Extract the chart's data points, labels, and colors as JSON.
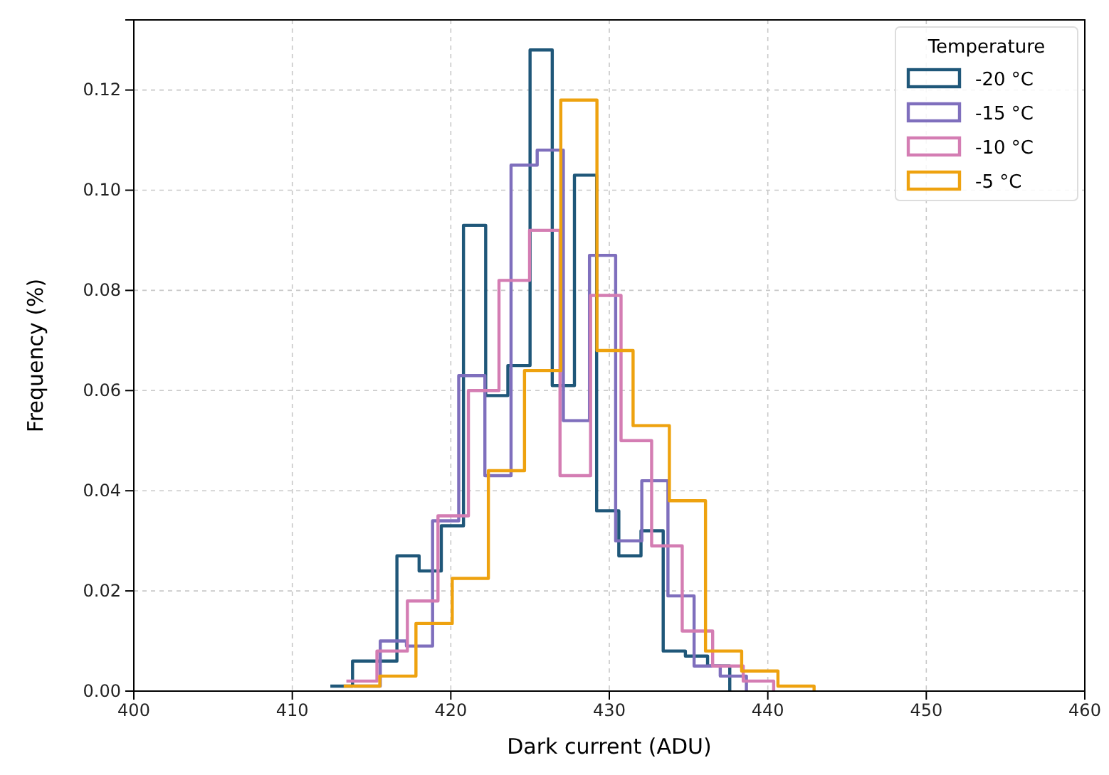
{
  "chart_data": {
    "type": "step",
    "xlabel": "Dark current (ADU)",
    "ylabel": "Frequency (%)",
    "legend_title": "Temperature",
    "legend": "top right",
    "grid": true,
    "xlim": [
      400,
      460
    ],
    "xticks": [
      400,
      410,
      420,
      430,
      440,
      450,
      460
    ],
    "ylim": [
      0,
      0.134
    ],
    "yticks": [
      {
        "value": 0,
        "label": "0.00"
      },
      {
        "value": 0.02,
        "label": "0.02"
      },
      {
        "value": 0.04,
        "label": "0.04"
      },
      {
        "value": 0.06,
        "label": "0.06"
      },
      {
        "value": 0.08,
        "label": "0.08"
      },
      {
        "value": 0.1,
        "label": "0.10"
      },
      {
        "value": 0.12,
        "label": "0.12"
      }
    ],
    "series": [
      {
        "name": "-20 °C",
        "color": "#1f5779",
        "x": [
          412.4,
          413.8,
          415.2,
          416.6,
          418.0,
          419.4,
          420.8,
          422.2,
          423.6,
          425.0,
          426.4,
          427.8,
          429.2,
          430.6,
          432.0,
          433.4,
          434.8,
          436.2,
          437.6
        ],
        "values": [
          0.001,
          0.006,
          0.006,
          0.027,
          0.024,
          0.033,
          0.093,
          0.059,
          0.065,
          0.128,
          0.061,
          0.103,
          0.036,
          0.027,
          0.032,
          0.008,
          0.007,
          0.005,
          0
        ]
      },
      {
        "name": "-15 °C",
        "color": "#7f6fbd",
        "x": [
          413.9,
          415.55,
          417.2,
          418.85,
          420.5,
          422.15,
          423.8,
          425.45,
          427.1,
          428.75,
          430.4,
          432.05,
          433.7,
          435.35,
          437.0,
          438.65
        ],
        "values": [
          0.001,
          0.01,
          0.009,
          0.034,
          0.063,
          0.043,
          0.105,
          0.108,
          0.054,
          0.087,
          0.03,
          0.042,
          0.019,
          0.005,
          0.003,
          0
        ]
      },
      {
        "name": "-10 °C",
        "color": "#d47db3",
        "x": [
          413.41,
          415.34,
          417.26,
          419.19,
          421.11,
          423.04,
          424.97,
          426.89,
          428.82,
          430.74,
          432.67,
          434.6,
          436.52,
          438.45,
          440.37
        ],
        "values": [
          0.002,
          0.008,
          0.018,
          0.035,
          0.06,
          0.082,
          0.092,
          0.043,
          0.079,
          0.05,
          0.029,
          0.012,
          0.005,
          0.002,
          0
        ]
      },
      {
        "name": "-5 °C",
        "color": "#eea20f",
        "x": [
          413.24,
          415.52,
          417.8,
          420.09,
          422.37,
          424.65,
          426.94,
          429.22,
          431.5,
          433.79,
          436.07,
          438.35,
          440.64,
          442.92
        ],
        "values": [
          0.001,
          0.003,
          0.0135,
          0.0225,
          0.044,
          0.064,
          0.118,
          0.068,
          0.053,
          0.038,
          0.008,
          0.004,
          0.001,
          0
        ]
      }
    ]
  }
}
